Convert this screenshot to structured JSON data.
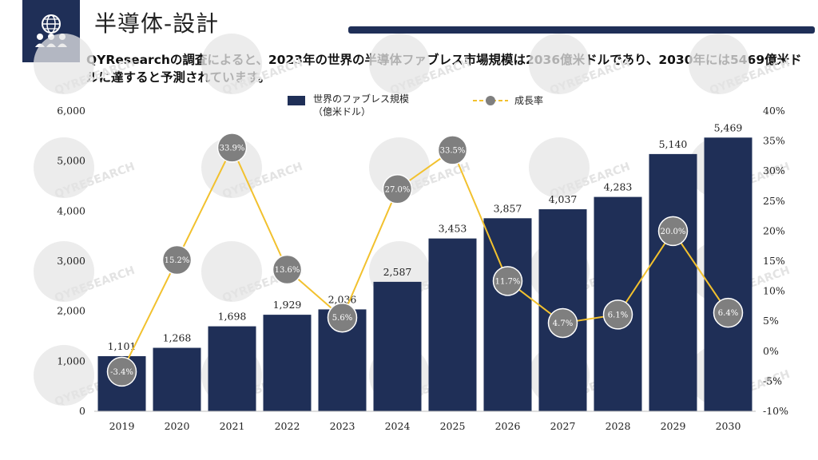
{
  "page": {
    "title": "半導体-設計",
    "subtitle": "QYResearchの調査によると、2023年の世界の半導体ファブレス市場規模は2036億米ドルであり、2030年には5469億米ドルに達すると予測されています。",
    "logo_icon": "globe-people-icon",
    "watermark": "QYRESEARCH",
    "colors": {
      "bar": "#1f2f57",
      "line": "#f2c12e",
      "marker": "#7f7f7f",
      "header": "#1f2f57"
    }
  },
  "legend": {
    "bar_label": "世界のファブレス規模\n（億米ドル）",
    "line_label": "成長率"
  },
  "chart_data": {
    "type": "bar",
    "categories": [
      "2019",
      "2020",
      "2021",
      "2022",
      "2023",
      "2024",
      "2025",
      "2026",
      "2027",
      "2028",
      "2029",
      "2030"
    ],
    "series": [
      {
        "name": "世界のファブレス規模（億米ドル）",
        "type": "bar",
        "axis": "left",
        "values": [
          1101,
          1268,
          1698,
          1929,
          2036,
          2587,
          3453,
          3857,
          4037,
          4283,
          5140,
          5469
        ],
        "labels": [
          "1,101",
          "1,268",
          "1,698",
          "1,929",
          "2,036",
          "2,587",
          "3,453",
          "3,857",
          "4,037",
          "4,283",
          "5,140",
          "5,469"
        ]
      },
      {
        "name": "成長率",
        "type": "line",
        "axis": "right",
        "values": [
          -3.4,
          15.2,
          33.9,
          13.6,
          5.6,
          27.0,
          33.5,
          11.7,
          4.7,
          6.1,
          20.0,
          6.4
        ],
        "labels": [
          "-3.4%",
          "15.2%",
          "33.9%",
          "13.6%",
          "5.6%",
          "27.0%",
          "33.5%",
          "11.7%",
          "4.7%",
          "6.1%",
          "20.0%",
          "6.4%"
        ]
      }
    ],
    "ylim": [
      0,
      6000
    ],
    "y2lim": [
      -10,
      40
    ],
    "yticks": [
      "0",
      "1,000",
      "2,000",
      "3,000",
      "4,000",
      "5,000",
      "6,000"
    ],
    "y2ticks": [
      "-10%",
      "-5%",
      "0%",
      "5%",
      "10%",
      "15%",
      "20%",
      "25%",
      "30%",
      "35%",
      "40%"
    ],
    "grid": false,
    "legend_position": "top-center"
  }
}
